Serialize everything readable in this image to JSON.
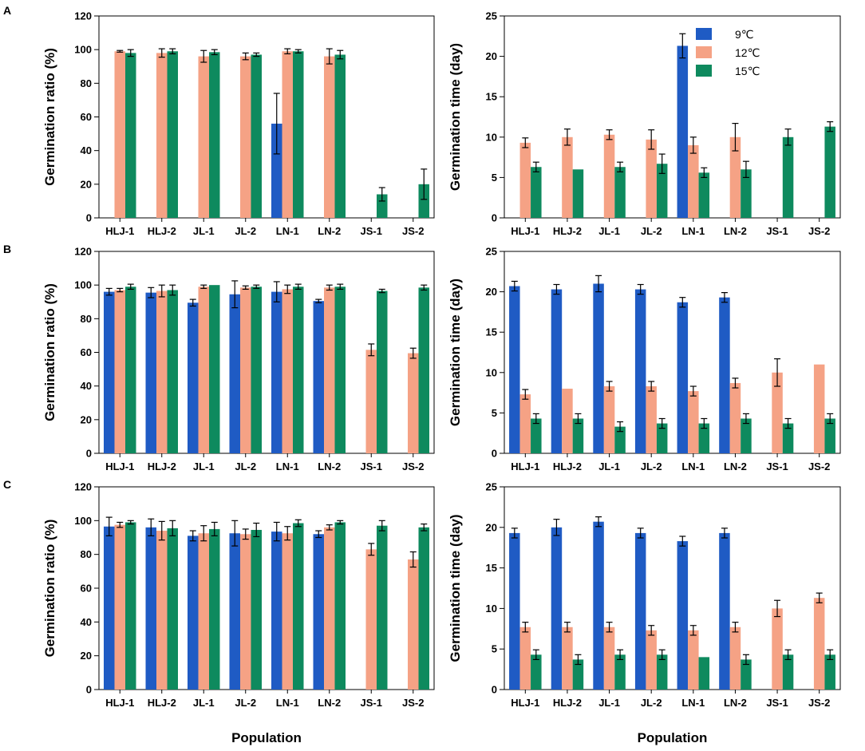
{
  "colors": {
    "c9": "#1f5bc4",
    "c12": "#f5a285",
    "c15": "#0e8a5e",
    "axis": "#000000",
    "errorbar": "#000000"
  },
  "chart_data": [
    {
      "type": "bar",
      "panel": "A",
      "position": "left",
      "categories": [
        "HLJ-1",
        "HLJ-2",
        "JL-1",
        "JL-2",
        "LN-1",
        "LN-2",
        "JS-1",
        "JS-2"
      ],
      "ylabel": "Germination ratio (%)",
      "xlabel": "",
      "ylim": [
        0,
        120
      ],
      "yticks": [
        0,
        20,
        40,
        60,
        80,
        100,
        120
      ],
      "series": [
        {
          "name": "9℃",
          "values": [
            null,
            null,
            null,
            null,
            56,
            null,
            null,
            null
          ],
          "errors": [
            null,
            null,
            null,
            null,
            18,
            null,
            null,
            null
          ]
        },
        {
          "name": "12℃",
          "values": [
            99,
            98,
            96,
            96,
            99,
            96,
            null,
            null
          ],
          "errors": [
            0.5,
            2.5,
            3.5,
            2,
            1.5,
            4.5,
            null,
            null
          ]
        },
        {
          "name": "15℃",
          "values": [
            98,
            99,
            98.5,
            97,
            99,
            97,
            14,
            20
          ],
          "errors": [
            2,
            1.5,
            1.5,
            1,
            1,
            2.5,
            4,
            9
          ]
        }
      ]
    },
    {
      "type": "bar",
      "panel": "",
      "position": "right",
      "categories": [
        "HLJ-1",
        "HLJ-2",
        "JL-1",
        "JL-2",
        "LN-1",
        "LN-2",
        "JS-1",
        "JS-2"
      ],
      "ylabel": "Germination time (day)",
      "xlabel": "",
      "ylim": [
        0,
        25
      ],
      "yticks": [
        0,
        5,
        10,
        15,
        20,
        25
      ],
      "legend": {
        "placement": "top-right",
        "entries": [
          "9℃",
          "12℃",
          "15℃"
        ]
      },
      "series": [
        {
          "name": "9℃",
          "values": [
            null,
            null,
            null,
            null,
            21.3,
            null,
            null,
            null
          ],
          "errors": [
            null,
            null,
            null,
            null,
            1.5,
            null,
            null,
            null
          ]
        },
        {
          "name": "12℃",
          "values": [
            9.3,
            10,
            10.3,
            9.7,
            9,
            10,
            null,
            null
          ],
          "errors": [
            0.6,
            1,
            0.6,
            1.2,
            1,
            1.7,
            null,
            null
          ]
        },
        {
          "name": "15℃",
          "values": [
            6.3,
            6,
            6.3,
            6.7,
            5.6,
            6,
            10,
            11.3
          ],
          "errors": [
            0.6,
            0,
            0.6,
            1.2,
            0.6,
            1,
            1,
            0.6
          ]
        }
      ]
    },
    {
      "type": "bar",
      "panel": "B",
      "position": "left",
      "categories": [
        "HLJ-1",
        "HLJ-2",
        "JL-1",
        "JL-2",
        "LN-1",
        "LN-2",
        "JS-1",
        "JS-2"
      ],
      "ylabel": "Germination ratio (%)",
      "xlabel": "",
      "ylim": [
        0,
        120
      ],
      "yticks": [
        0,
        20,
        40,
        60,
        80,
        100,
        120
      ],
      "series": [
        {
          "name": "9℃",
          "values": [
            96,
            95.5,
            89.5,
            94.5,
            96,
            90.5,
            null,
            null
          ],
          "errors": [
            2,
            3,
            2,
            8,
            6,
            1,
            null,
            null
          ]
        },
        {
          "name": "12℃",
          "values": [
            97,
            96.5,
            99,
            98.5,
            97.5,
            98.5,
            61.5,
            59.5
          ],
          "errors": [
            1,
            3.5,
            1,
            1,
            2.5,
            1.5,
            3.5,
            3
          ]
        },
        {
          "name": "15℃",
          "values": [
            99,
            97,
            100,
            99,
            99,
            99,
            96.5,
            98.5
          ],
          "errors": [
            1.5,
            3,
            0,
            1,
            1.5,
            1.5,
            1,
            1.5
          ]
        }
      ]
    },
    {
      "type": "bar",
      "panel": "",
      "position": "right",
      "categories": [
        "HLJ-1",
        "HLJ-2",
        "JL-1",
        "JL-2",
        "LN-1",
        "LN-2",
        "JS-1",
        "JS-2"
      ],
      "ylabel": "Germination time (day)",
      "xlabel": "",
      "ylim": [
        0,
        25
      ],
      "yticks": [
        0,
        5,
        10,
        15,
        20,
        25
      ],
      "series": [
        {
          "name": "9℃",
          "values": [
            20.7,
            20.3,
            21,
            20.3,
            18.7,
            19.3,
            null,
            null
          ],
          "errors": [
            0.6,
            0.6,
            1,
            0.6,
            0.6,
            0.6,
            null,
            null
          ]
        },
        {
          "name": "12℃",
          "values": [
            7.3,
            8,
            8.3,
            8.3,
            7.7,
            8.7,
            10,
            11
          ],
          "errors": [
            0.6,
            0,
            0.6,
            0.6,
            0.6,
            0.6,
            1.7,
            0
          ]
        },
        {
          "name": "15℃",
          "values": [
            4.3,
            4.3,
            3.3,
            3.7,
            3.7,
            4.3,
            3.7,
            4.3
          ],
          "errors": [
            0.6,
            0.6,
            0.6,
            0.6,
            0.6,
            0.6,
            0.6,
            0.6
          ]
        }
      ]
    },
    {
      "type": "bar",
      "panel": "C",
      "position": "left",
      "categories": [
        "HLJ-1",
        "HLJ-2",
        "JL-1",
        "JL-2",
        "LN-1",
        "LN-2",
        "JS-1",
        "JS-2"
      ],
      "ylabel": "Germination ratio (%)",
      "xlabel": "Population",
      "ylim": [
        0,
        120
      ],
      "yticks": [
        0,
        20,
        40,
        60,
        80,
        100,
        120
      ],
      "series": [
        {
          "name": "9℃",
          "values": [
            96.5,
            96,
            91,
            92.5,
            93.5,
            92,
            null,
            null
          ],
          "errors": [
            5.5,
            5,
            3,
            7.5,
            5.5,
            2,
            null,
            null
          ]
        },
        {
          "name": "12℃",
          "values": [
            97.5,
            94,
            92.5,
            92,
            92.5,
            96,
            83,
            77
          ],
          "errors": [
            1.5,
            5.5,
            4.5,
            3,
            4,
            1.5,
            3.5,
            4.5
          ]
        },
        {
          "name": "15℃",
          "values": [
            99,
            95.5,
            95,
            94.5,
            98.5,
            99,
            97,
            96
          ],
          "errors": [
            1,
            4.5,
            4,
            4,
            2,
            1,
            3,
            2
          ]
        }
      ]
    },
    {
      "type": "bar",
      "panel": "",
      "position": "right",
      "categories": [
        "HLJ-1",
        "HLJ-2",
        "JL-1",
        "JL-2",
        "LN-1",
        "LN-2",
        "JS-1",
        "JS-2"
      ],
      "ylabel": "Germination time (day)",
      "xlabel": "Population",
      "ylim": [
        0,
        25
      ],
      "yticks": [
        0,
        5,
        10,
        15,
        20,
        25
      ],
      "series": [
        {
          "name": "9℃",
          "values": [
            19.3,
            20,
            20.7,
            19.3,
            18.3,
            19.3,
            null,
            null
          ],
          "errors": [
            0.6,
            1,
            0.6,
            0.6,
            0.6,
            0.6,
            null,
            null
          ]
        },
        {
          "name": "12℃",
          "values": [
            7.7,
            7.7,
            7.7,
            7.3,
            7.3,
            7.7,
            10,
            11.3
          ],
          "errors": [
            0.6,
            0.6,
            0.6,
            0.6,
            0.6,
            0.6,
            1,
            0.6
          ]
        },
        {
          "name": "15℃",
          "values": [
            4.3,
            3.7,
            4.3,
            4.3,
            4,
            3.7,
            4.3,
            4.3
          ],
          "errors": [
            0.6,
            0.6,
            0.6,
            0.6,
            0,
            0.6,
            0.6,
            0.6
          ]
        }
      ]
    }
  ]
}
